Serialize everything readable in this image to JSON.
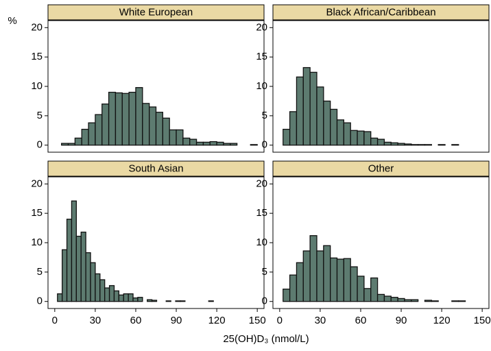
{
  "ylabel": "%",
  "xlabel": "25(OH)D₃ (nmol/L)",
  "chart_data": [
    {
      "type": "histogram",
      "title": "White European",
      "color": "#5d7b70",
      "bins": [
        5,
        10,
        15,
        20,
        25,
        30,
        35,
        40,
        45,
        50,
        55,
        60,
        65,
        70,
        75,
        80,
        85,
        90,
        95,
        100,
        105,
        110,
        115,
        120,
        125,
        130,
        135,
        140,
        145,
        150
      ],
      "values": [
        0.3,
        0.3,
        1.2,
        2.7,
        3.8,
        5.2,
        7.0,
        9.0,
        8.9,
        8.8,
        9.0,
        9.8,
        7.1,
        6.5,
        5.6,
        4.6,
        2.6,
        2.6,
        1.2,
        1.0,
        0.5,
        0.5,
        0.6,
        0.5,
        0.3,
        0.3,
        0,
        0,
        0.1
      ],
      "xlim": [
        -5,
        155
      ],
      "ylim": [
        -1.2,
        21.2
      ],
      "yticks": [
        0,
        5,
        10,
        15,
        20
      ]
    },
    {
      "type": "histogram",
      "title": "Black African/Caribbean",
      "color": "#5d7b70",
      "bins": [
        2.5,
        7.5,
        12.5,
        17.5,
        22.5,
        27.5,
        32.5,
        37.5,
        42.5,
        47.5,
        52.5,
        57.5,
        62.5,
        67.5,
        72.5,
        77.5,
        82.5,
        87.5,
        92.5,
        97.5,
        102.5,
        107.5,
        112.5,
        117.5,
        122.5,
        127.5,
        132.5
      ],
      "values": [
        2.7,
        5.7,
        11.6,
        13.2,
        12.4,
        9.9,
        7.5,
        6.1,
        4.3,
        3.8,
        2.5,
        2.4,
        2.3,
        1.2,
        1.0,
        0.5,
        0.4,
        0.3,
        0.2,
        0.1,
        0.1,
        0.1,
        0,
        0.1,
        0,
        0.1
      ],
      "xlim": [
        -5,
        155
      ],
      "ylim": [
        -1.2,
        21.2
      ],
      "yticks": [
        0,
        5,
        10,
        15,
        20
      ]
    },
    {
      "type": "histogram",
      "title": "South Asian",
      "color": "#5d7b70",
      "bins": [
        2,
        5.5,
        9,
        12.5,
        16,
        19.5,
        23,
        26.5,
        30,
        33.5,
        37,
        40.5,
        44,
        47.5,
        51,
        54.5,
        58,
        61.5,
        65,
        68.5,
        72,
        75.5,
        79,
        82.5,
        86,
        89.5,
        93,
        96.5,
        100,
        103.5,
        107,
        110.5,
        114,
        117.5
      ],
      "values": [
        1.3,
        8.8,
        14.0,
        17.1,
        11.1,
        11.8,
        8.3,
        6.6,
        4.7,
        3.7,
        2.3,
        2.7,
        1.8,
        1.1,
        1.3,
        1.3,
        0.6,
        0.7,
        0,
        0.3,
        0.2,
        0,
        0,
        0.1,
        0,
        0.1,
        0.1,
        0,
        0,
        0,
        0,
        0,
        0.1
      ],
      "xlim": [
        -5,
        155
      ],
      "ylim": [
        -1.2,
        21.2
      ],
      "xticks": [
        0,
        30,
        60,
        90,
        120,
        150
      ],
      "yticks": [
        0,
        5,
        10,
        15,
        20
      ]
    },
    {
      "type": "histogram",
      "title": "Other",
      "color": "#5d7b70",
      "bins": [
        2.5,
        7.5,
        12.5,
        17.5,
        22.5,
        27.5,
        32.5,
        37.5,
        42.5,
        47.5,
        52.5,
        57.5,
        62.5,
        67.5,
        72.5,
        77.5,
        82.5,
        87.5,
        92.5,
        97.5,
        102.5,
        107.5,
        112.5,
        117.5,
        122.5,
        127.5,
        132.5,
        137.5
      ],
      "values": [
        2.1,
        4.5,
        6.6,
        8.6,
        11.2,
        8.6,
        9.5,
        7.4,
        7.2,
        7.3,
        5.9,
        4.3,
        2.2,
        4.0,
        1.2,
        0.9,
        0.7,
        0.5,
        0.3,
        0.3,
        0,
        0.2,
        0.1,
        0,
        0,
        0.1,
        0.1
      ],
      "xlim": [
        -5,
        155
      ],
      "ylim": [
        -1.2,
        21.2
      ],
      "xticks": [
        0,
        30,
        60,
        90,
        120,
        150
      ],
      "yticks": [
        0,
        5,
        10,
        15,
        20
      ]
    }
  ]
}
